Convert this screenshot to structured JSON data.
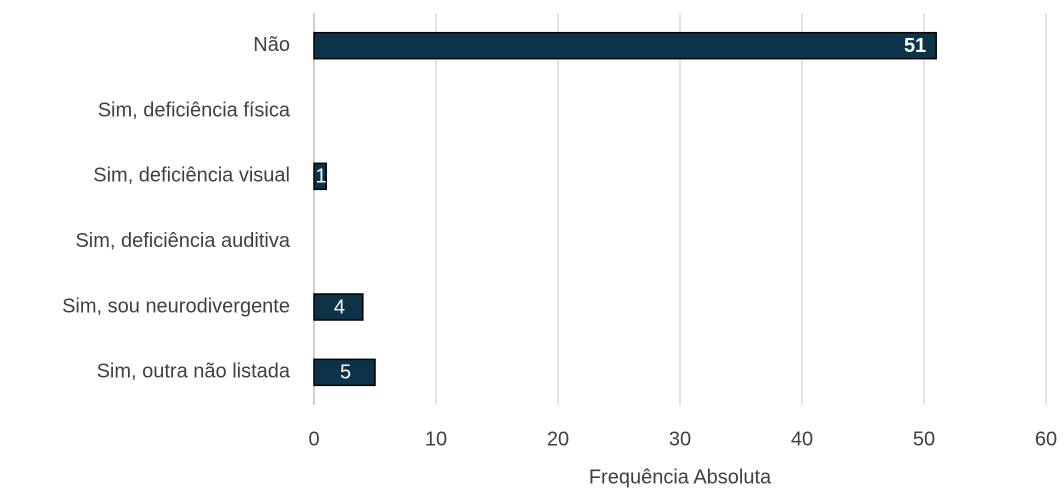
{
  "chart_data": {
    "type": "hbar",
    "categories": [
      "Não",
      "Sim, deficiência física",
      "Sim, deficiência visual",
      "Sim, deficiência auditiva",
      "Sim, sou neurodivergente",
      "Sim, outra não listada"
    ],
    "values": [
      51,
      0,
      1,
      0,
      4,
      5
    ],
    "color": "#0d3349",
    "xlim": [
      0,
      60
    ],
    "xticks": [
      0,
      10,
      20,
      30,
      40,
      50,
      60
    ],
    "xlabel": "Frequência Absoluta",
    "grid": true
  }
}
